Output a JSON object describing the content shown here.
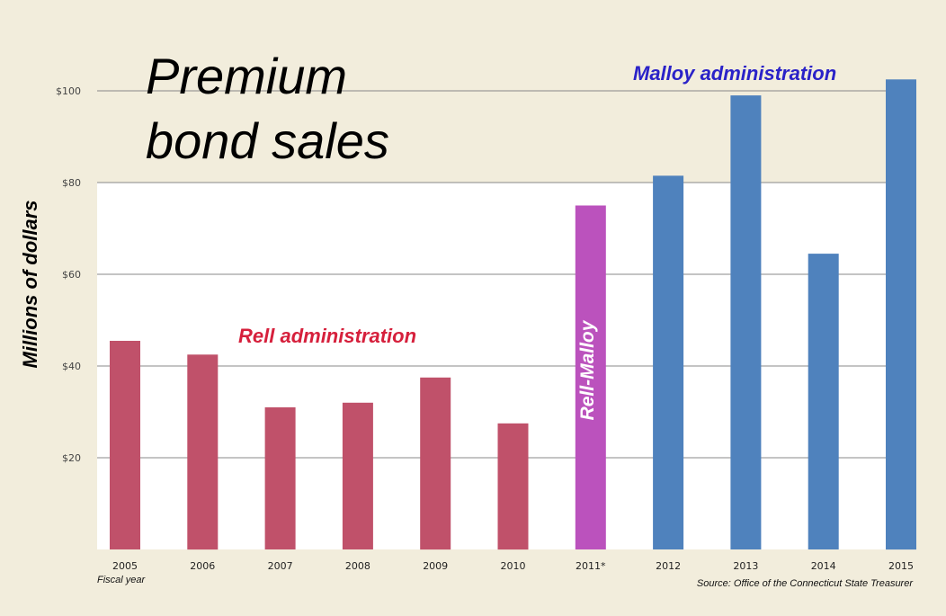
{
  "chart_data": {
    "type": "bar",
    "title": "Premium bond sales",
    "title_lines": [
      "Premium",
      "bond sales"
    ],
    "ylabel": "Millions of dollars",
    "xlabel": "Fiscal year",
    "source": "Source: Office of the Connecticut State Treasurer",
    "ylim": [
      0,
      110
    ],
    "yticks": [
      20,
      40,
      60,
      80,
      100
    ],
    "ytick_labels": [
      "$20",
      "$40",
      "$60",
      "$80",
      "$100"
    ],
    "grid": true,
    "categories": [
      "2005",
      "2006",
      "2007",
      "2008",
      "2009",
      "2010",
      "2011*",
      "2012",
      "2013",
      "2014",
      "2015"
    ],
    "values": [
      45.5,
      42.5,
      31,
      32,
      37.5,
      27.5,
      75,
      81.5,
      99,
      64.5,
      102.5
    ],
    "bar_groups": [
      "Rell",
      "Rell",
      "Rell",
      "Rell",
      "Rell",
      "Rell",
      "Rell-Malloy",
      "Malloy",
      "Malloy",
      "Malloy",
      "Malloy"
    ],
    "administrations": [
      {
        "key": "Rell",
        "label": "Rell administration",
        "color": "#c0516a"
      },
      {
        "key": "Rell-Malloy",
        "label": "Rell-Malloy",
        "color": "#bb52bd"
      },
      {
        "key": "Malloy",
        "label": "Malloy administration",
        "color": "#4f82bd"
      }
    ]
  },
  "colors": {
    "background": "#f2eddc",
    "plot_background": "#ffffff",
    "gridline": "#888888",
    "rell_label": "#d6203c",
    "malloy_label": "#2a22c8"
  }
}
